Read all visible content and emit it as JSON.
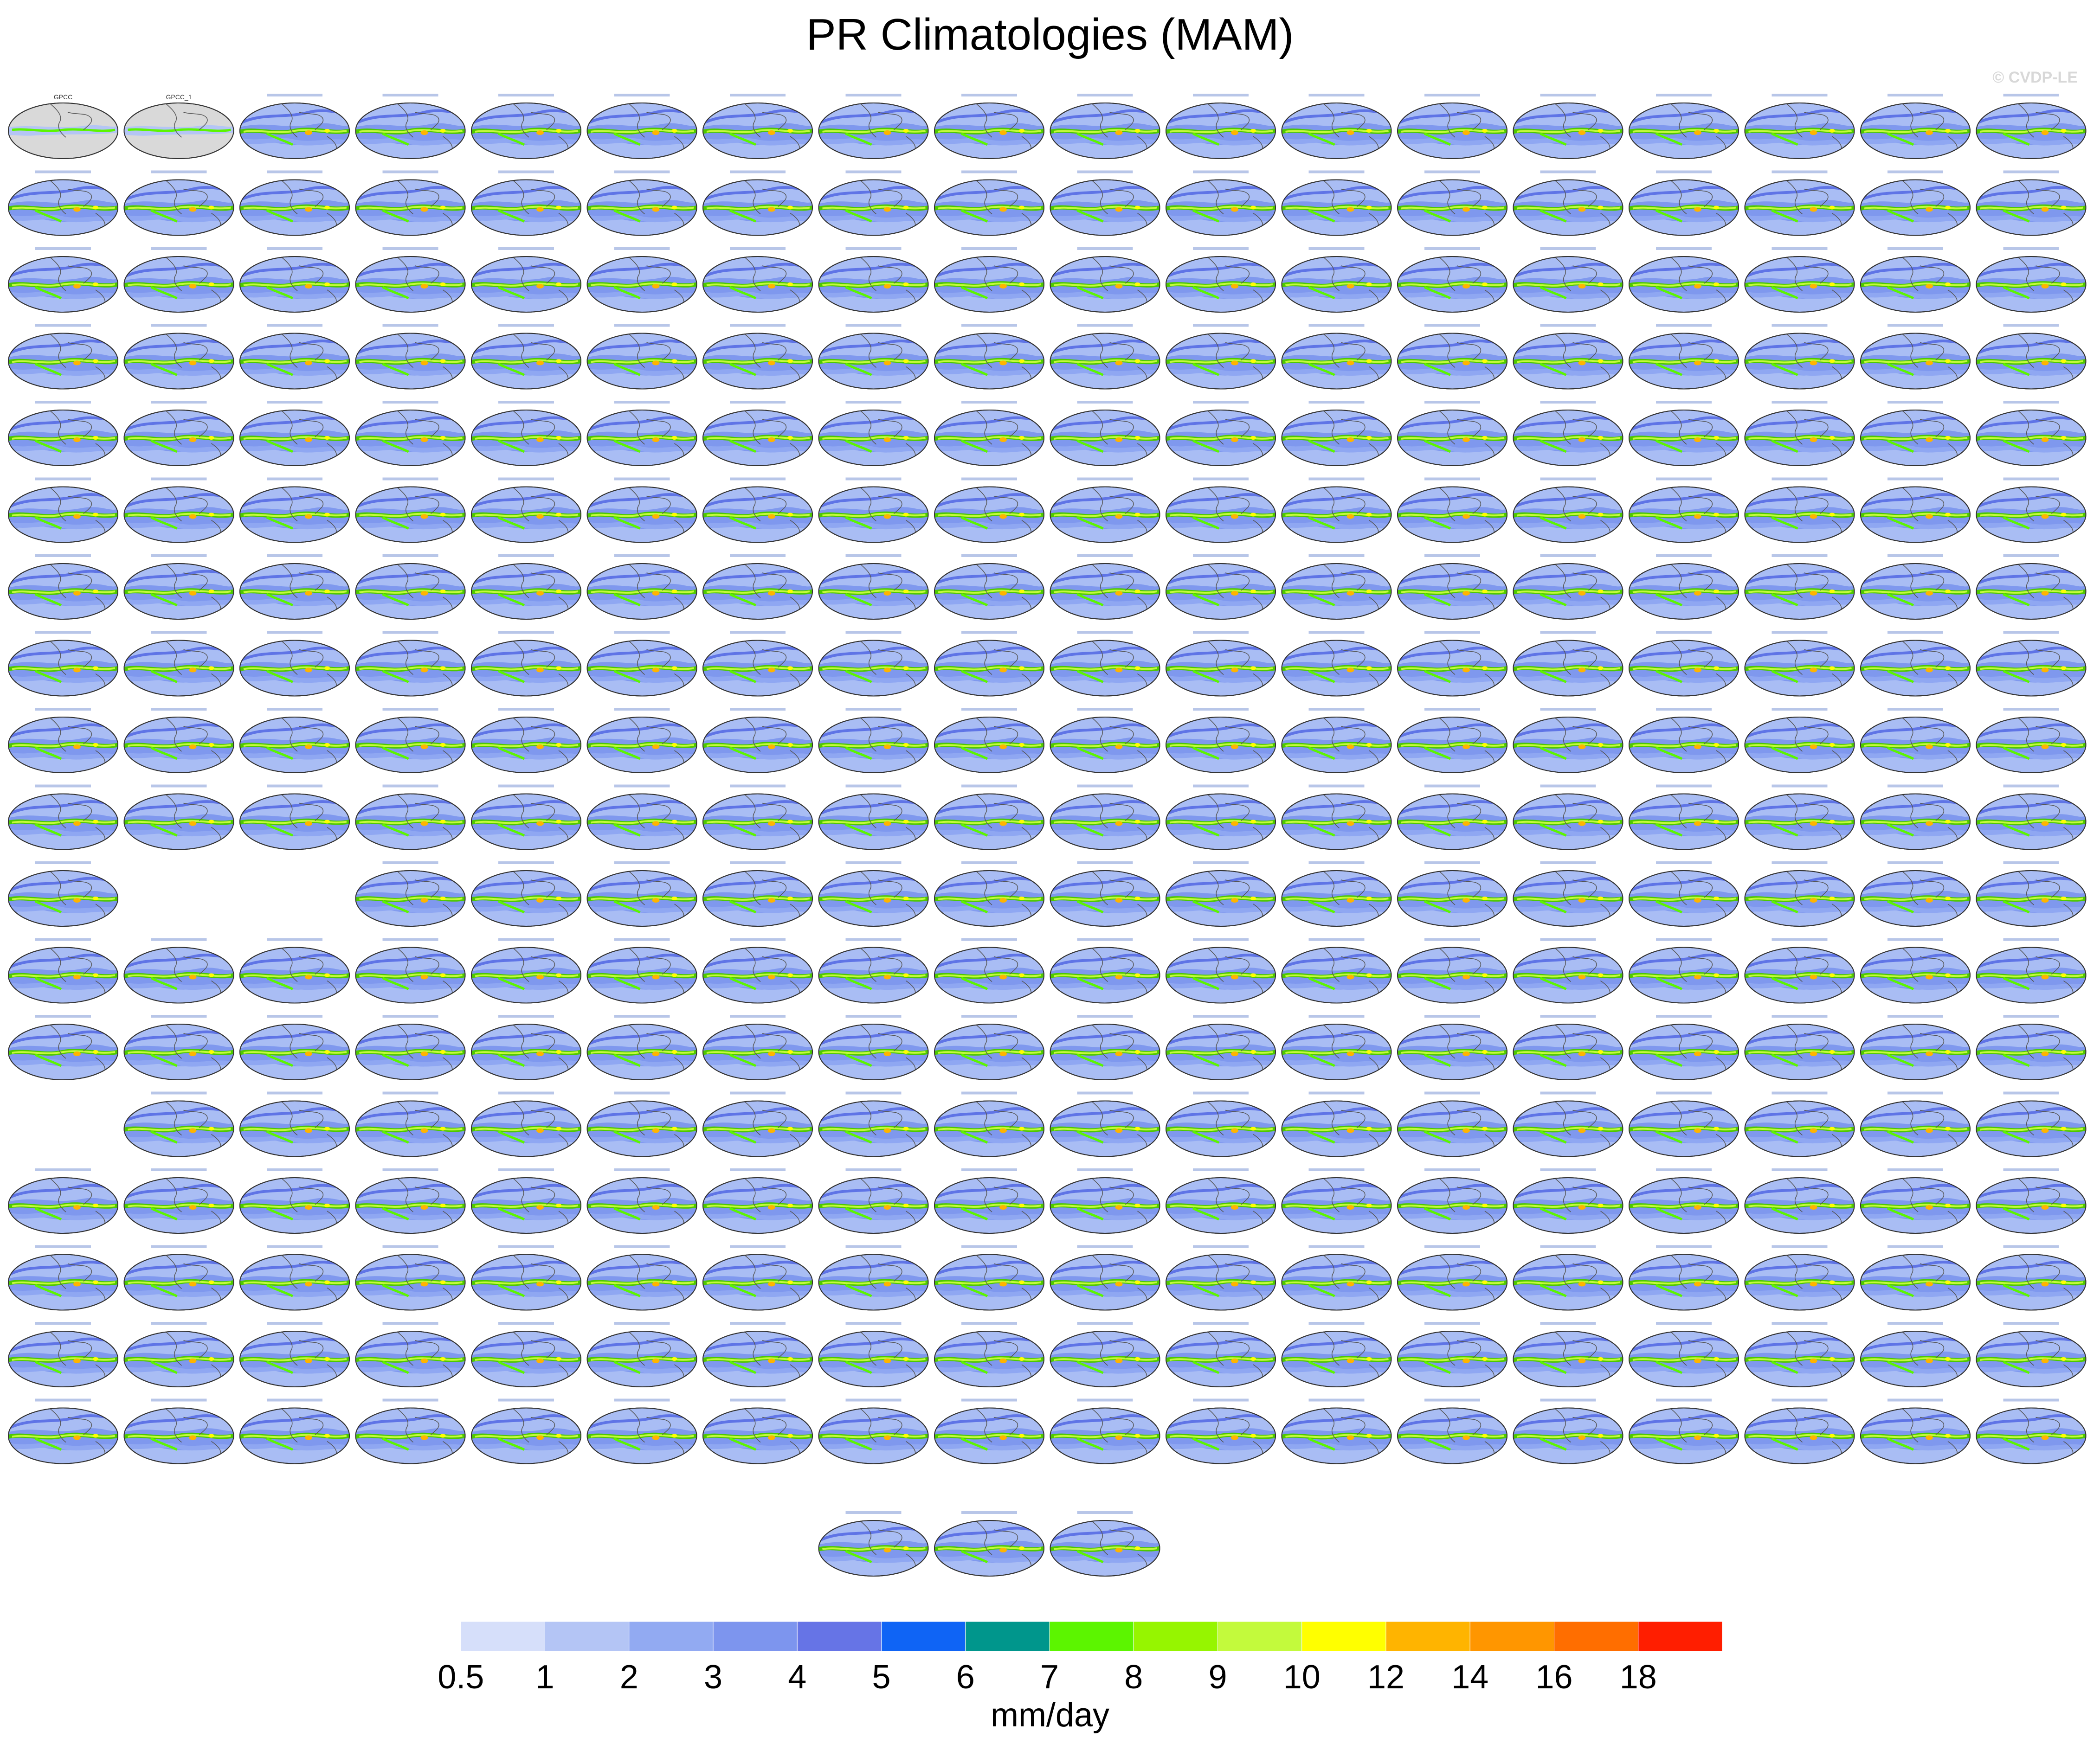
{
  "title": "PR Climatologies (MAM)",
  "watermark": "© CVDP-LE",
  "colorbar": {
    "units": "mm/day",
    "tick_labels": [
      "0.5",
      "1",
      "2",
      "3",
      "4",
      "5",
      "6",
      "7",
      "8",
      "9",
      "10",
      "12",
      "14",
      "16",
      "18"
    ],
    "colors": [
      "#ffffff",
      "#d6dffa",
      "#b4c5f5",
      "#92aaf2",
      "#7d95ee",
      "#6674e6",
      "#0f64f5",
      "#00968c",
      "#5cf500",
      "#96f500",
      "#c3fa3c",
      "#ffff00",
      "#ffb400",
      "#ff9600",
      "#ff6e00",
      "#ff1e00"
    ]
  },
  "chart_data": {
    "type": "heatmap",
    "title": "PR Climatologies (MAM)",
    "variable": "PR",
    "season": "MAM",
    "units": "mm/day",
    "contour_levels": [
      0.5,
      1,
      2,
      3,
      4,
      5,
      6,
      7,
      8,
      9,
      10,
      12,
      14,
      16,
      18
    ],
    "panel_rows": [
      {
        "row": 1,
        "panels": 18,
        "visible_labels": [
          "GPCC",
          "GPCC_1"
        ]
      },
      {
        "row": 2,
        "panels": 18
      },
      {
        "row": 3,
        "panels": 18
      },
      {
        "row": 4,
        "panels": 18
      },
      {
        "row": 5,
        "panels": 18
      },
      {
        "row": 6,
        "panels": 18
      },
      {
        "row": 7,
        "panels": 18
      },
      {
        "row": 8,
        "panels": 18
      },
      {
        "row": 9,
        "panels": 18
      },
      {
        "row": 10,
        "panels": 18
      },
      {
        "row": 11,
        "panels": 16,
        "skipped_columns": [
          2,
          3
        ]
      },
      {
        "row": 12,
        "panels": 18
      },
      {
        "row": 13,
        "panels": 18
      },
      {
        "row": 14,
        "panels": 17,
        "skipped_columns": [
          1
        ]
      },
      {
        "row": 15,
        "panels": 18
      },
      {
        "row": 16,
        "panels": 18
      },
      {
        "row": 17,
        "panels": 18
      },
      {
        "row": 18,
        "panels": 18
      },
      {
        "row": 19,
        "panels": 3,
        "columns": [
          8,
          9,
          10
        ]
      }
    ]
  }
}
